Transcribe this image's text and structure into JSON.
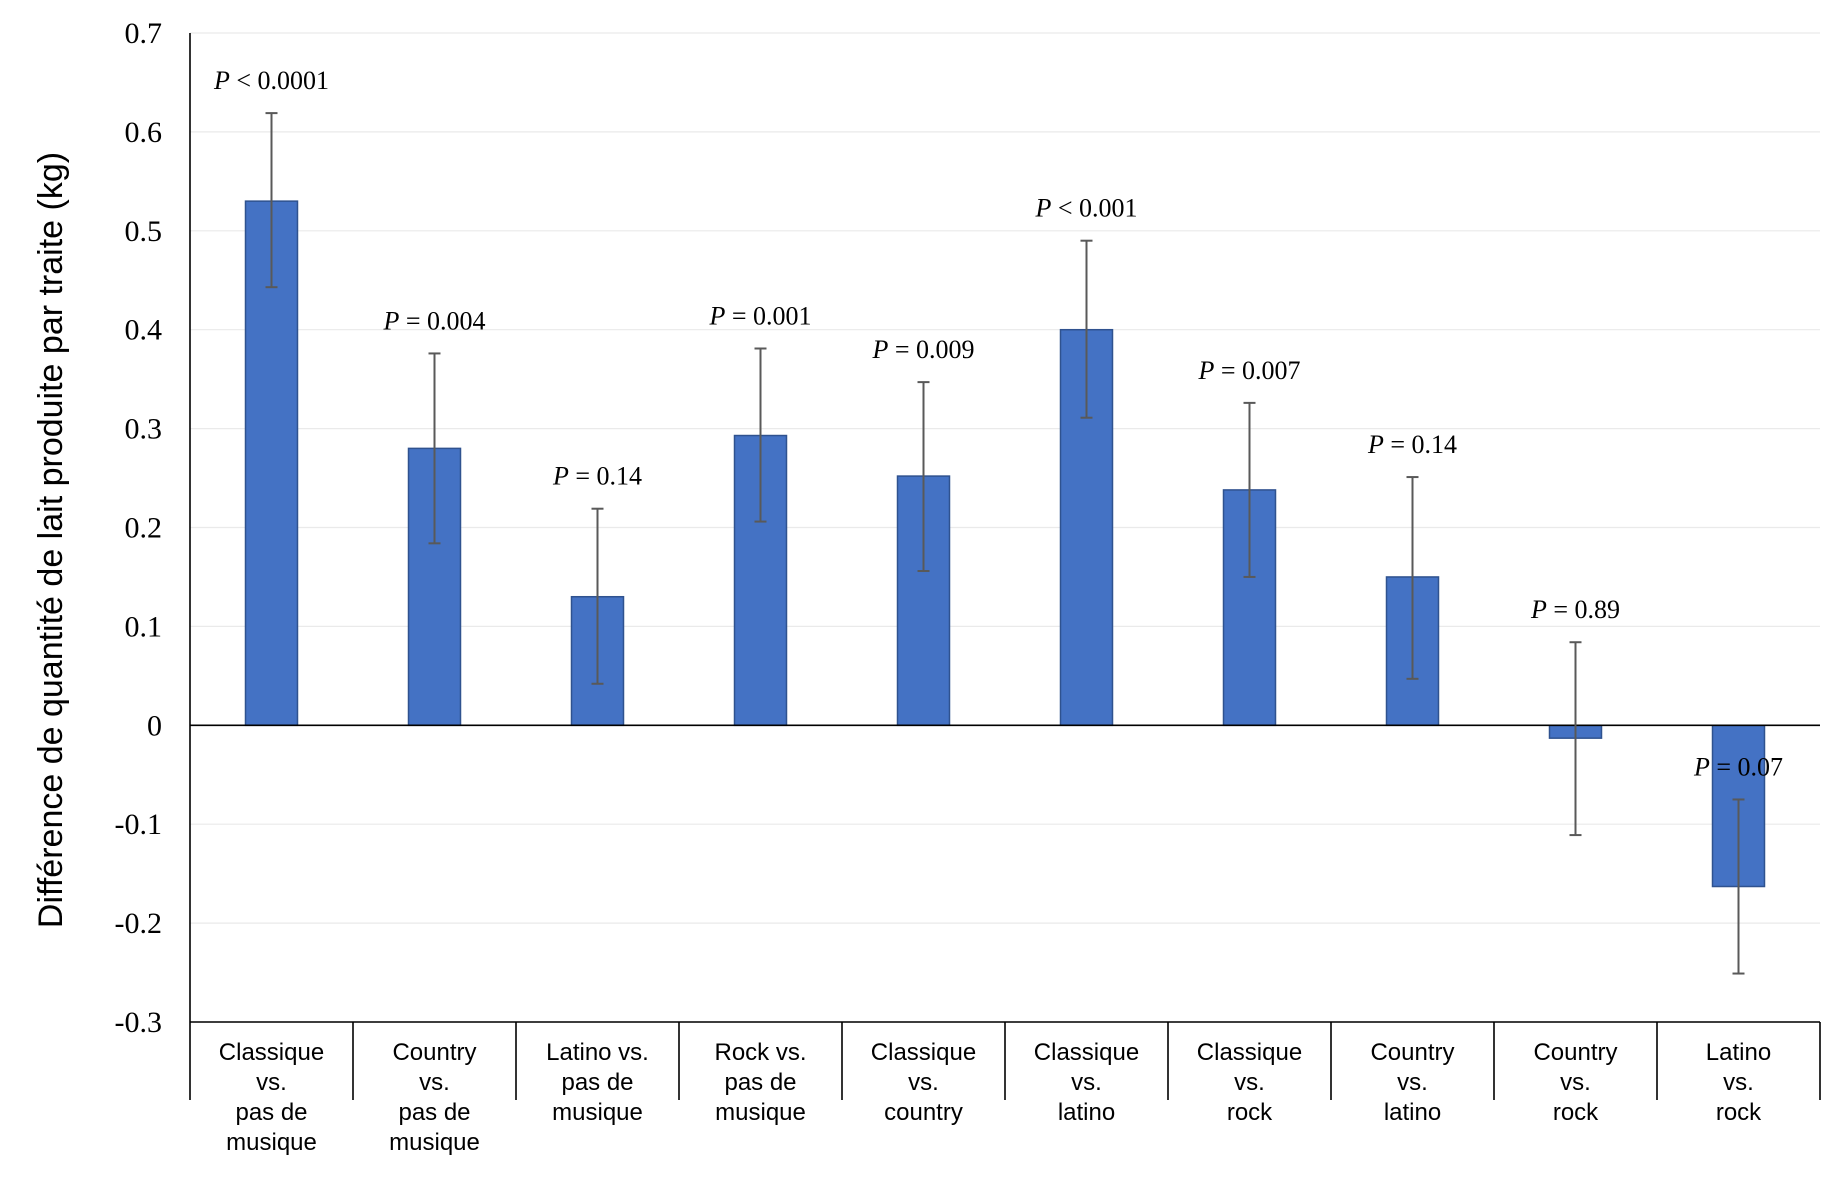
{
  "chart_data": {
    "type": "bar",
    "ylabel": "Différence de quantité de lait produite par traite (kg)",
    "xlabel": "",
    "ylim": [
      -0.3,
      0.7
    ],
    "ytick_step": 0.1,
    "yticks": [
      "-0.3",
      "-0.2",
      "-0.1",
      "0",
      "0.1",
      "0.2",
      "0.3",
      "0.4",
      "0.5",
      "0.6",
      "0.7"
    ],
    "grid": true,
    "categories": [
      [
        "Classique",
        "vs.",
        "pas de",
        "musique"
      ],
      [
        "Country",
        "vs.",
        "pas de",
        "musique"
      ],
      [
        "Latino vs.",
        "pas de",
        "musique"
      ],
      [
        "Rock vs.",
        "pas de",
        "musique"
      ],
      [
        "Classique",
        "vs.",
        "country"
      ],
      [
        "Classique",
        "vs.",
        "latino"
      ],
      [
        "Classique",
        "vs.",
        "rock"
      ],
      [
        "Country",
        "vs.",
        "latino"
      ],
      [
        "Country",
        "vs.",
        "rock"
      ],
      [
        "Latino",
        "vs.",
        "rock"
      ]
    ],
    "values": [
      0.53,
      0.28,
      0.13,
      0.293,
      0.252,
      0.4,
      0.238,
      0.15,
      -0.013,
      -0.163
    ],
    "error_low": [
      0.443,
      0.184,
      0.042,
      0.206,
      0.156,
      0.311,
      0.15,
      0.047,
      -0.111,
      -0.251
    ],
    "error_high": [
      0.619,
      0.376,
      0.219,
      0.381,
      0.347,
      0.49,
      0.326,
      0.251,
      0.084,
      -0.075
    ],
    "p_labels": [
      {
        "p": "P",
        "rel": "< 0.0001"
      },
      {
        "p": "P",
        "rel": "= 0.004"
      },
      {
        "p": "P",
        "rel": "= 0.14"
      },
      {
        "p": "P",
        "rel": "= 0.001"
      },
      {
        "p": "P",
        "rel": "= 0.009"
      },
      {
        "p": "P",
        "rel": "< 0.001"
      },
      {
        "p": "P",
        "rel": "= 0.007"
      },
      {
        "p": "P",
        "rel": "= 0.14"
      },
      {
        "p": "P",
        "rel": "= 0.89"
      },
      {
        "p": "P",
        "rel": "= 0.07"
      }
    ],
    "colors": {
      "bar": "#4472c4",
      "bar_edge": "#2f528f",
      "error": "#595959"
    }
  }
}
